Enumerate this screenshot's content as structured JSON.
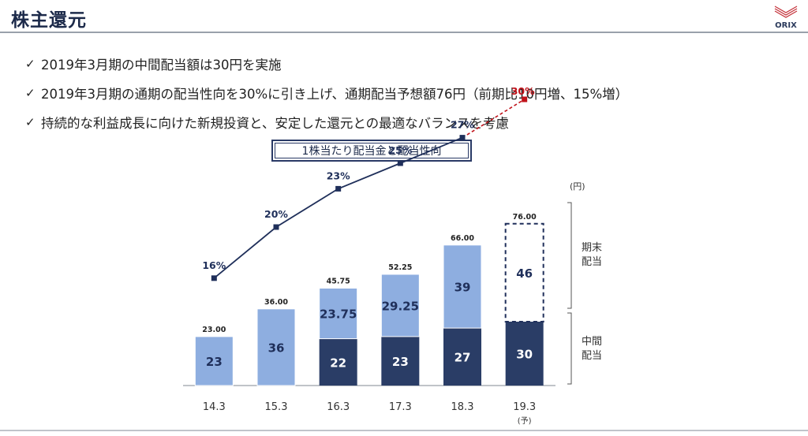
{
  "page": {
    "title": "株主還元",
    "logo_text": "ORIX",
    "bullets": [
      "2019年3月期の中間配当額は30円を実施",
      "2019年3月期の通期の配当性向を30%に引き上げ、通期配当予想額76円（前期比10円増、15%増）",
      "持続的な利益成長に向けた新規投資と、安定した還元との最適なバランスを考慮"
    ]
  },
  "chart_data": {
    "type": "bar",
    "title": "1株当たり配当金と配当性向",
    "unit_label": "(円)",
    "categories": [
      "14.3",
      "15.3",
      "16.3",
      "17.3",
      "18.3",
      "19.3"
    ],
    "category_note": "(予)",
    "ylim": [
      0,
      80
    ],
    "series": [
      {
        "name": "中間配当",
        "values": [
          null,
          null,
          22,
          23,
          27,
          30
        ],
        "labels": [
          "",
          "",
          "22",
          "23",
          "27",
          "30"
        ],
        "color": "#2a3d66"
      },
      {
        "name": "期末配当",
        "values": [
          23,
          36,
          23.75,
          29.25,
          39,
          46
        ],
        "labels": [
          "23",
          "36",
          "23.75",
          "29.25",
          "39",
          "46"
        ],
        "color": "#8eaee0"
      }
    ],
    "totals": [
      "23.00",
      "36.00",
      "45.75",
      "52.25",
      "66.00",
      "76.00"
    ],
    "forecast_index": 5,
    "payout_ratio": {
      "values": [
        16,
        20,
        23,
        25,
        27,
        30
      ],
      "labels": [
        "16%",
        "20%",
        "23%",
        "25%",
        "27%",
        "30%"
      ],
      "color": "#1f2f5a",
      "forecast_color": "#c0121a"
    },
    "legend": {
      "top": "期末\n配当",
      "bottom": "中間\n配当"
    },
    "grid": false
  }
}
